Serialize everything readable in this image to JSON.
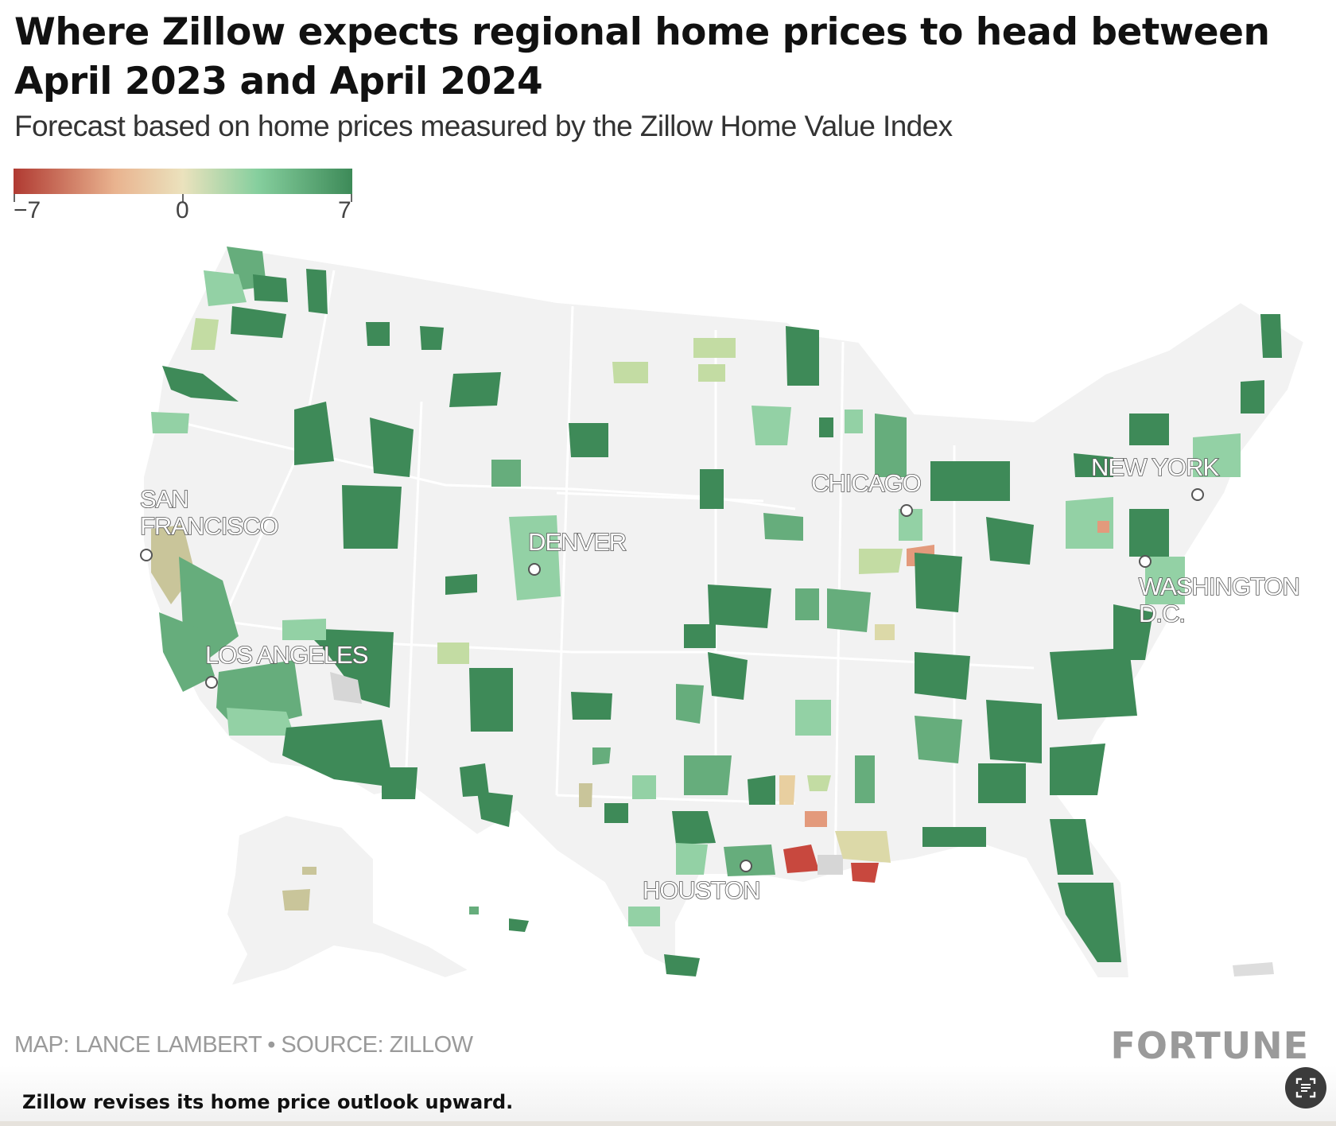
{
  "title": "Where Zillow expects regional home prices to head between April 2023 and April 2024",
  "subtitle": "Forecast based on home prices measured by the Zillow Home Value Index",
  "legend": {
    "min_label": "−7",
    "mid_label": "0",
    "max_label": "7",
    "colors": [
      "#b03a32",
      "#e9b38f",
      "#ebe2bd",
      "#86cf9e",
      "#3d8a58"
    ]
  },
  "map": {
    "cities": [
      {
        "id": "san-francisco",
        "lines": [
          "SAN",
          "FRANCISCO"
        ]
      },
      {
        "id": "los-angeles",
        "lines": [
          "LOS ANGELES"
        ]
      },
      {
        "id": "denver",
        "lines": [
          "DENVER"
        ]
      },
      {
        "id": "chicago",
        "lines": [
          "CHICAGO"
        ]
      },
      {
        "id": "new-york",
        "lines": [
          "NEW YORK"
        ]
      },
      {
        "id": "washington",
        "lines": [
          "WASHINGTON",
          "D.C."
        ]
      },
      {
        "id": "houston",
        "lines": [
          "HOUSTON"
        ]
      }
    ],
    "colors": {
      "land": "#f2f2f2",
      "state_border": "#ffffff",
      "no_data": "#d6d6d6",
      "deep_green": "#3e8a58",
      "mid_green": "#66ad7c",
      "light_green": "#93d1a5",
      "pale": "#dcd9a8",
      "pale_green": "#c3dca3",
      "salmon": "#e39a7c",
      "red": "#c8483e"
    }
  },
  "credit": "MAP: LANCE LAMBERT • SOURCE: ZILLOW",
  "brand": "FORTUNE",
  "caption": "Zillow revises its home price outlook upward."
}
